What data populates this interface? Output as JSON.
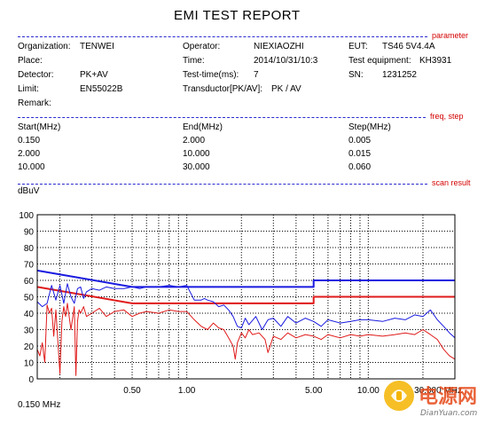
{
  "report": {
    "title": "EMI TEST REPORT"
  },
  "sections": {
    "parameter": "parameter",
    "freq_step": "freq, step",
    "scan_result": "scan result"
  },
  "params": {
    "organization_label": "Organization:",
    "organization_value": "TENWEI",
    "operator_label": "Operator:",
    "operator_value": "NIEXIAOZHI",
    "eut_label": "EUT:",
    "eut_value": "TS46 5V4.4A",
    "place_label": "Place:",
    "time_label": "Time:",
    "time_value": "2014/10/31/10:3",
    "test_equipment_label": "Test equipment:",
    "test_equipment_value": "KH3931",
    "detector_label": "Detector:",
    "detector_value": "PK+AV",
    "test_time_label": "Test-time(ms):",
    "test_time_value": "7",
    "sn_label": "SN:",
    "sn_value": "1231252",
    "limit_label": "Limit:",
    "limit_value": "EN55022B",
    "transductor_label": "Transductor[PK/AV]:",
    "transductor_value": "PK  /  AV",
    "remark_label": "Remark:"
  },
  "freq_table": {
    "headers": [
      "Start(MHz)",
      "End(MHz)",
      "Step(MHz)"
    ],
    "rows": [
      [
        "0.150",
        "2.000",
        "0.005"
      ],
      [
        "2.000",
        "10.000",
        "0.015"
      ],
      [
        "10.000",
        "30.000",
        "0.060"
      ]
    ]
  },
  "watermark": {
    "brand_text": "电源网",
    "site_text": "DianYuan.com"
  },
  "chart_data": {
    "type": "line",
    "ylabel": "dBuV",
    "x_scale": "log",
    "xlim": [
      0.15,
      30
    ],
    "ylim": [
      0,
      100
    ],
    "grid": true,
    "x_start_label": "0.150 MHz",
    "x_ticks": [
      {
        "value": 0.5,
        "label": "0.50"
      },
      {
        "value": 1.0,
        "label": "1.00"
      },
      {
        "value": 5.0,
        "label": "5.00"
      },
      {
        "value": 10.0,
        "label": "10.00"
      },
      {
        "value": 30.0,
        "label": "30.000 MHz"
      }
    ],
    "x_grid": [
      0.2,
      0.3,
      0.4,
      0.5,
      0.6,
      0.7,
      0.8,
      0.9,
      1,
      2,
      3,
      4,
      5,
      6,
      7,
      8,
      9,
      10,
      20
    ],
    "y_ticks": [
      0,
      10,
      20,
      30,
      40,
      50,
      60,
      70,
      80,
      90,
      100
    ],
    "series": [
      {
        "role": "qp_limit",
        "color": "#1a1ae0",
        "x": [
          0.15,
          0.5,
          5,
          5,
          30
        ],
        "y": [
          66,
          56,
          56,
          60,
          60
        ]
      },
      {
        "role": "avg_limit",
        "color": "#e01a1a",
        "x": [
          0.15,
          0.5,
          5,
          5,
          30
        ],
        "y": [
          56,
          46,
          46,
          50,
          50
        ]
      },
      {
        "role": "peak_trace",
        "color": "#1a1ae0",
        "x": [
          0.15,
          0.16,
          0.17,
          0.18,
          0.19,
          0.2,
          0.21,
          0.22,
          0.23,
          0.24,
          0.25,
          0.26,
          0.27,
          0.28,
          0.3,
          0.33,
          0.36,
          0.4,
          0.45,
          0.5,
          0.55,
          0.6,
          0.7,
          0.8,
          0.9,
          1.0,
          1.1,
          1.2,
          1.25,
          1.3,
          1.4,
          1.5,
          1.6,
          1.7,
          1.8,
          1.9,
          2.0,
          2.1,
          2.2,
          2.4,
          2.6,
          2.8,
          3.0,
          3.3,
          3.6,
          4.0,
          4.5,
          5.0,
          5.5,
          6.0,
          7.0,
          8.0,
          9.0,
          10,
          12,
          14,
          16,
          18,
          20,
          22,
          24,
          26,
          28,
          30
        ],
        "y": [
          47,
          44,
          46,
          57,
          48,
          57,
          46,
          58,
          50,
          46,
          55,
          56,
          49,
          53,
          55,
          54,
          56,
          55,
          55,
          56,
          55,
          56,
          56,
          57,
          56,
          57,
          48,
          48,
          49,
          48,
          47,
          44,
          45,
          42,
          38,
          32,
          31,
          37,
          33,
          38,
          30,
          36,
          37,
          32,
          38,
          34,
          37,
          35,
          32,
          36,
          34,
          35,
          36,
          36,
          35,
          37,
          36,
          39,
          38,
          42,
          36,
          32,
          28,
          25
        ]
      },
      {
        "role": "avg_trace",
        "color": "#e01a1a",
        "x": [
          0.15,
          0.155,
          0.16,
          0.165,
          0.17,
          0.175,
          0.18,
          0.185,
          0.19,
          0.2,
          0.205,
          0.21,
          0.215,
          0.22,
          0.23,
          0.24,
          0.245,
          0.25,
          0.255,
          0.26,
          0.27,
          0.28,
          0.3,
          0.33,
          0.36,
          0.4,
          0.45,
          0.5,
          0.55,
          0.6,
          0.7,
          0.8,
          0.9,
          1.0,
          1.1,
          1.2,
          1.3,
          1.4,
          1.5,
          1.6,
          1.7,
          1.8,
          1.85,
          1.9,
          2.0,
          2.1,
          2.2,
          2.3,
          2.5,
          2.7,
          2.8,
          3.0,
          3.3,
          3.6,
          4.0,
          4.5,
          5.0,
          5.5,
          6.0,
          7.0,
          8.0,
          9.0,
          10,
          12,
          14,
          16,
          18,
          20,
          22,
          24,
          26,
          28,
          30
        ],
        "y": [
          18,
          14,
          22,
          10,
          45,
          40,
          43,
          26,
          42,
          3,
          35,
          44,
          38,
          46,
          30,
          44,
          2,
          35,
          42,
          40,
          44,
          38,
          40,
          43,
          38,
          41,
          42,
          38,
          40,
          41,
          40,
          42,
          41,
          41,
          36,
          32,
          30,
          34,
          31,
          30,
          25,
          20,
          12,
          22,
          28,
          25,
          30,
          27,
          28,
          24,
          16,
          26,
          24,
          28,
          25,
          27,
          26,
          24,
          27,
          25,
          27,
          26,
          27,
          26,
          27,
          28,
          27,
          30,
          27,
          24,
          18,
          14,
          12
        ]
      }
    ]
  }
}
